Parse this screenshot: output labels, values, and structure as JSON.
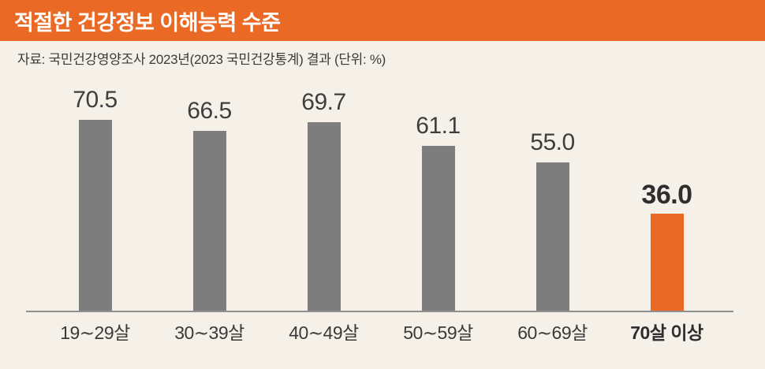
{
  "header": {
    "title": "적절한 건강정보 이해능력 수준",
    "background_color": "#EA6A25",
    "title_color": "#FFFFFF"
  },
  "source_note": "자료: 국민건강영양조사 2023년(2023 국민건강통계) 결과 (단위: %)",
  "chart_data": {
    "type": "bar",
    "title": "적절한 건강정보 이해능력 수준",
    "unit": "%",
    "categories": [
      "19∼29살",
      "30∼39살",
      "40∼49살",
      "50∼59살",
      "60∼69살",
      "70살 이상"
    ],
    "values": [
      70.5,
      66.5,
      69.7,
      61.1,
      55.0,
      36.0
    ],
    "value_labels": [
      "70.5",
      "66.5",
      "69.7",
      "61.1",
      "55.0",
      "36.0"
    ],
    "highlight_index": 5,
    "bar_color": "#7D7D7D",
    "highlight_color": "#EA6A25",
    "background_color": "#F5F1E9",
    "ylim": [
      0,
      80
    ],
    "grid": false,
    "legend": "none",
    "xlabel": "",
    "ylabel": ""
  }
}
